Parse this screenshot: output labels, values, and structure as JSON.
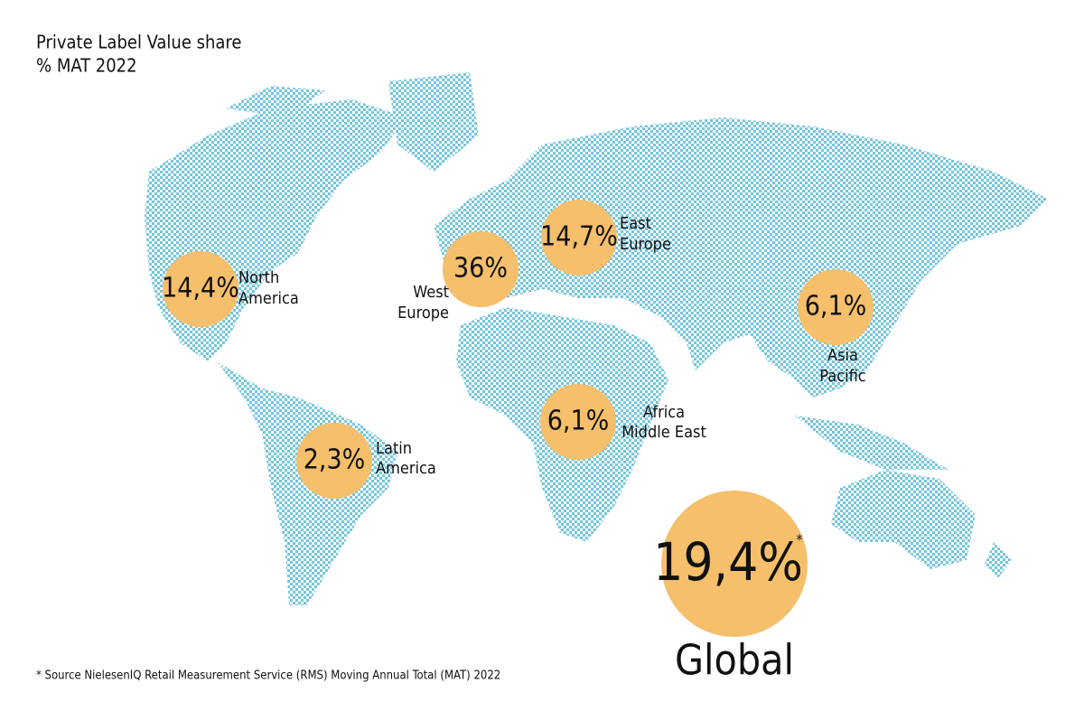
{
  "header": {
    "title": "Private Label Value share",
    "subtitle": "% MAT 2022"
  },
  "regions": [
    {
      "value": "14,4%",
      "name": [
        "North",
        "America"
      ]
    },
    {
      "value": "36%",
      "name": [
        "West",
        "Europe"
      ]
    },
    {
      "value": "14,7%",
      "name": [
        "East",
        "Europe"
      ]
    },
    {
      "value": "6,1%",
      "name": [
        "Asia",
        "Pacific"
      ]
    },
    {
      "value": "6,1%",
      "name": [
        "Africa",
        "Middle East"
      ]
    },
    {
      "value": "2,3%",
      "name": [
        "Latin",
        "America"
      ]
    }
  ],
  "global": {
    "value": "19,4%",
    "marker": "*",
    "label": "Global"
  },
  "footnote": "* Source NielesenIQ Retail Measurement Service (RMS) Moving Annual Total (MAT) 2022"
}
